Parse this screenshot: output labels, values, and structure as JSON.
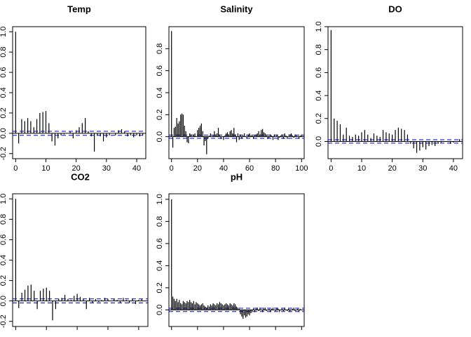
{
  "chart_data": [
    {
      "type": "bar",
      "title": "Temp",
      "xlim": [
        -1,
        43
      ],
      "ylim": [
        -0.25,
        1.05
      ],
      "xticks": [
        0,
        10,
        20,
        30,
        40
      ],
      "yticks": [
        -0.2,
        0.0,
        0.2,
        0.4,
        0.6,
        0.8,
        1.0
      ],
      "x_tick_labels": [
        "0",
        "10",
        "20",
        "30",
        "40"
      ],
      "y_tick_labels": [
        "-0.2",
        "0.0",
        "0.2",
        "0.4",
        "0.6",
        "0.8",
        "1.0"
      ],
      "conf_limits": [
        0.02,
        -0.02
      ],
      "lags": [
        0,
        1,
        2,
        3,
        4,
        5,
        6,
        7,
        8,
        9,
        10,
        11,
        12,
        13,
        14,
        15,
        16,
        17,
        18,
        19,
        20,
        21,
        22,
        23,
        24,
        25,
        26,
        27,
        28,
        29,
        30,
        31,
        32,
        33,
        34,
        35,
        36,
        37,
        38,
        39,
        40,
        41,
        42
      ],
      "acf": [
        1.0,
        -0.1,
        0.14,
        0.12,
        0.15,
        0.12,
        0.06,
        0.14,
        0.2,
        0.21,
        0.22,
        0.1,
        -0.08,
        -0.12,
        -0.05,
        -0.02,
        -0.01,
        0.0,
        0.02,
        -0.05,
        0.03,
        0.06,
        0.1,
        0.15,
        0.02,
        -0.03,
        -0.18,
        -0.02,
        -0.03,
        -0.08,
        -0.04,
        -0.02,
        0.0,
        -0.02,
        0.03,
        0.04,
        0.02,
        -0.03,
        -0.02,
        -0.04,
        -0.02,
        -0.03,
        -0.02
      ]
    },
    {
      "type": "bar",
      "title": "Salinity",
      "xlim": [
        -2,
        102
      ],
      "ylim": [
        -0.2,
        1.0
      ],
      "xticks": [
        0,
        20,
        40,
        60,
        80,
        100
      ],
      "yticks": [
        0.0,
        0.2,
        0.4,
        0.6,
        0.8
      ],
      "x_tick_labels": [
        "0",
        "20",
        "40",
        "60",
        "80",
        "100"
      ],
      "y_tick_labels": [
        "0.0",
        "0.2",
        "0.4",
        "0.6",
        "0.8"
      ],
      "conf_limits": [
        0.015,
        -0.015
      ],
      "lags": [
        0,
        1,
        2,
        3,
        4,
        5,
        6,
        7,
        8,
        9,
        10,
        11,
        12,
        13,
        14,
        15,
        16,
        17,
        18,
        19,
        20,
        21,
        22,
        23,
        24,
        25,
        26,
        27,
        28,
        29,
        30,
        31,
        32,
        33,
        34,
        35,
        36,
        37,
        38,
        39,
        40,
        41,
        42,
        43,
        44,
        45,
        46,
        47,
        48,
        49,
        50,
        51,
        52,
        53,
        54,
        55,
        56,
        57,
        58,
        59,
        60,
        61,
        62,
        63,
        64,
        65,
        66,
        67,
        68,
        69,
        70,
        71,
        72,
        73,
        74,
        75,
        76,
        77,
        78,
        79,
        80,
        81,
        82,
        83,
        84,
        85,
        86,
        87,
        88,
        89,
        90,
        91,
        92,
        93,
        94,
        95,
        96,
        97,
        98,
        99,
        100
      ],
      "acf": [
        0.96,
        -0.1,
        0.08,
        0.09,
        0.17,
        0.12,
        0.14,
        0.2,
        0.21,
        0.2,
        0.1,
        0.05,
        -0.05,
        -0.06,
        0.03,
        0.02,
        0.0,
        0.02,
        0.03,
        0.0,
        0.06,
        0.08,
        0.1,
        0.12,
        0.05,
        -0.08,
        -0.04,
        -0.16,
        -0.02,
        0.01,
        0.03,
        0.0,
        0.01,
        0.05,
        0.02,
        0.03,
        0.08,
        0.02,
        -0.02,
        0.0,
        -0.03,
        0.01,
        0.03,
        0.04,
        0.02,
        0.05,
        0.06,
        0.03,
        0.08,
        0.02,
        -0.05,
        0.03,
        -0.03,
        0.02,
        -0.02,
        0.01,
        0.03,
        0.0,
        -0.01,
        0.02,
        0.03,
        0.01,
        0.02,
        -0.02,
        0.01,
        0.02,
        0.03,
        0.05,
        0.02,
        0.06,
        0.07,
        0.04,
        0.03,
        0.02,
        -0.02,
        -0.01,
        0.02,
        0.01,
        -0.03,
        0.02,
        0.0,
        0.02,
        -0.03,
        -0.01,
        0.01,
        0.02,
        -0.02,
        0.03,
        0.01,
        -0.02,
        0.0,
        0.02,
        0.03,
        0.01,
        -0.01,
        0.02,
        0.01,
        0.0,
        -0.02,
        0.01,
        0.02
      ]
    },
    {
      "type": "bar",
      "title": "DO",
      "xlim": [
        -1,
        43
      ],
      "ylim": [
        -0.15,
        1.0
      ],
      "xticks": [
        0,
        10,
        20,
        30,
        40
      ],
      "yticks": [
        0.0,
        0.2,
        0.4,
        0.6,
        0.8,
        1.0
      ],
      "x_tick_labels": [
        "0",
        "10",
        "20",
        "30",
        "40"
      ],
      "y_tick_labels": [
        "0.0",
        "0.2",
        "0.4",
        "0.6",
        "0.8",
        "1.0"
      ],
      "conf_limits": [
        0.015,
        -0.015
      ],
      "lags": [
        0,
        1,
        2,
        3,
        4,
        5,
        6,
        7,
        8,
        9,
        10,
        11,
        12,
        13,
        14,
        15,
        16,
        17,
        18,
        19,
        20,
        21,
        22,
        23,
        24,
        25,
        26,
        27,
        28,
        29,
        30,
        31,
        32,
        33,
        34,
        35,
        36,
        37,
        38,
        39,
        40,
        41,
        42
      ],
      "acf": [
        0.97,
        0.2,
        0.18,
        0.15,
        0.06,
        0.12,
        0.05,
        0.04,
        0.06,
        0.05,
        0.08,
        0.1,
        0.06,
        0.03,
        0.07,
        0.05,
        0.04,
        0.1,
        0.08,
        0.07,
        0.06,
        0.1,
        0.12,
        0.11,
        0.1,
        0.06,
        -0.02,
        -0.06,
        -0.1,
        -0.08,
        -0.05,
        -0.07,
        -0.04,
        -0.03,
        -0.04,
        -0.02,
        -0.01,
        0.0,
        0.0,
        -0.02,
        -0.01,
        0.0,
        0.02
      ]
    },
    {
      "type": "bar",
      "title": "CO2",
      "xlim": [
        -1,
        43
      ],
      "ylim": [
        -0.25,
        1.05
      ],
      "xticks": [
        0,
        10,
        20,
        30,
        40
      ],
      "yticks": [
        -0.2,
        0.0,
        0.2,
        0.4,
        0.6,
        0.8,
        1.0
      ],
      "x_tick_labels": [
        "",
        "",
        "",
        "",
        ""
      ],
      "y_tick_labels": [
        "-0.2",
        "0.0",
        "0.2",
        "0.4",
        "0.6",
        "0.8",
        "1.0"
      ],
      "conf_limits": [
        0.02,
        -0.02
      ],
      "lags": [
        0,
        1,
        2,
        3,
        4,
        5,
        6,
        7,
        8,
        9,
        10,
        11,
        12,
        13,
        14,
        15,
        16,
        17,
        18,
        19,
        20,
        21,
        22,
        23,
        24,
        25,
        26,
        27,
        28,
        29,
        30,
        31,
        32,
        33,
        34,
        35,
        36,
        37,
        38,
        39,
        40,
        41,
        42
      ],
      "acf": [
        1.0,
        -0.07,
        0.08,
        0.11,
        0.15,
        0.16,
        0.1,
        -0.08,
        0.1,
        0.12,
        0.13,
        0.1,
        -0.19,
        -0.08,
        0.02,
        0.03,
        0.06,
        0.02,
        0.01,
        0.05,
        0.07,
        0.04,
        0.02,
        -0.08,
        0.03,
        -0.02,
        0.02,
        -0.01,
        0.01,
        0.03,
        0.02,
        0.0,
        0.02,
        0.01,
        -0.02,
        0.03,
        0.01,
        -0.02,
        0.02,
        -0.03,
        0.01,
        0.02,
        0.0
      ]
    },
    {
      "type": "bar",
      "title": "pH",
      "xlim": [
        -2,
        102
      ],
      "ylim": [
        -0.15,
        1.05
      ],
      "xticks": [
        0,
        20,
        40,
        60,
        80,
        100
      ],
      "yticks": [
        0.0,
        0.2,
        0.4,
        0.6,
        0.8,
        1.0
      ],
      "x_tick_labels": [
        "",
        "",
        "",
        "",
        "",
        ""
      ],
      "y_tick_labels": [
        "0.0",
        "0.2",
        "0.4",
        "0.6",
        "0.8",
        "1.0"
      ],
      "conf_limits": [
        0.015,
        -0.015
      ],
      "lags": [
        0,
        1,
        2,
        3,
        4,
        5,
        6,
        7,
        8,
        9,
        10,
        11,
        12,
        13,
        14,
        15,
        16,
        17,
        18,
        19,
        20,
        21,
        22,
        23,
        24,
        25,
        26,
        27,
        28,
        29,
        30,
        31,
        32,
        33,
        34,
        35,
        36,
        37,
        38,
        39,
        40,
        41,
        42,
        43,
        44,
        45,
        46,
        47,
        48,
        49,
        50,
        51,
        52,
        53,
        54,
        55,
        56,
        57,
        58,
        59,
        60,
        61,
        62,
        63,
        64,
        65,
        66,
        67,
        68,
        69,
        70,
        71,
        72,
        73,
        74,
        75,
        76,
        77,
        78,
        79,
        80,
        81,
        82,
        83,
        84,
        85,
        86,
        87,
        88,
        89,
        90,
        91,
        92,
        93,
        94,
        95,
        96,
        97,
        98,
        99,
        100
      ],
      "acf": [
        1.0,
        0.12,
        0.1,
        0.08,
        0.1,
        0.07,
        0.09,
        0.06,
        0.05,
        0.08,
        0.07,
        0.06,
        0.08,
        0.07,
        0.09,
        0.07,
        0.06,
        0.08,
        0.05,
        0.07,
        0.06,
        0.05,
        0.04,
        0.05,
        0.06,
        0.04,
        0.03,
        0.02,
        0.04,
        0.03,
        0.05,
        0.04,
        0.06,
        0.05,
        0.04,
        0.06,
        0.05,
        0.07,
        0.06,
        0.05,
        0.04,
        0.05,
        0.06,
        0.05,
        0.04,
        0.06,
        0.05,
        0.04,
        0.06,
        0.05,
        0.03,
        0.02,
        0.01,
        -0.04,
        -0.06,
        -0.08,
        -0.05,
        -0.07,
        -0.06,
        -0.04,
        -0.05,
        -0.03,
        -0.02,
        0.01,
        -0.02,
        0.01,
        0.02,
        -0.01,
        0.02,
        0.0,
        -0.02,
        0.01,
        0.02,
        -0.01,
        0.0,
        0.01,
        -0.02,
        0.01,
        0.02,
        0.0,
        -0.01,
        0.02,
        0.01,
        -0.02,
        0.0,
        0.01,
        -0.01,
        0.02,
        0.0,
        -0.01,
        0.01,
        -0.02,
        0.0,
        0.01,
        0.02,
        -0.01,
        0.0,
        0.01,
        -0.02,
        0.01,
        0.0
      ]
    }
  ],
  "colors": {
    "spike": "#000000",
    "zero_line": "#000000",
    "conf_line": "#0000cc",
    "axis": "#000000",
    "background": "#ffffff"
  }
}
